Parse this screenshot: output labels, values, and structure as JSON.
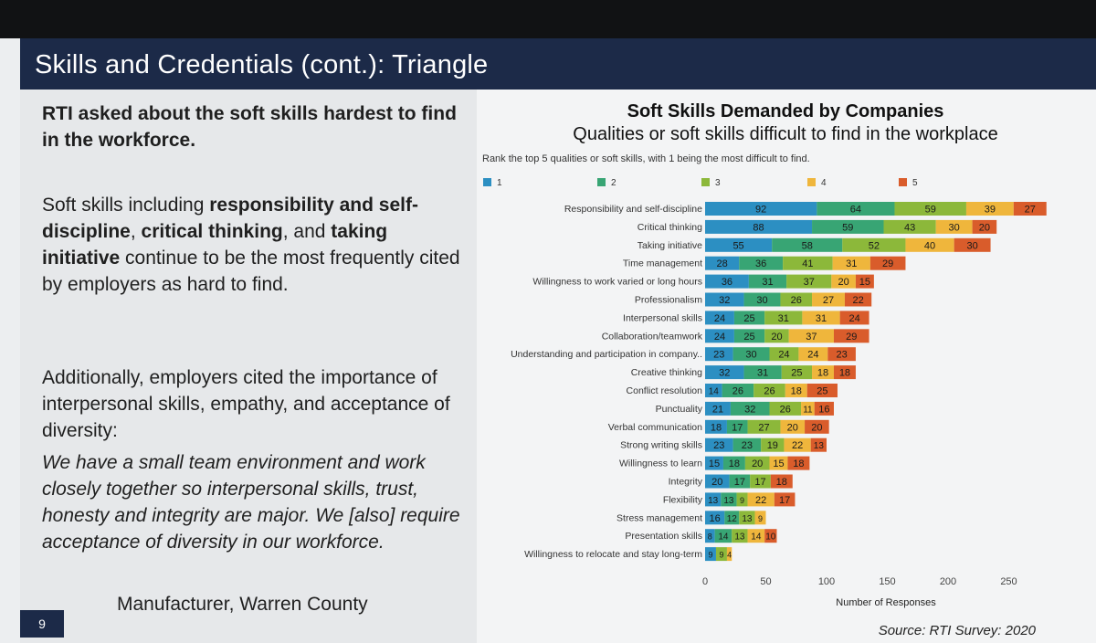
{
  "slide": {
    "title": "Skills and Credentials (cont.): Triangle",
    "intro": "RTI asked about the soft skills hardest to find in the workforce.",
    "para2": {
      "p1": "Soft skills including ",
      "b1": "responsibility and self-discipline",
      "p2": ", ",
      "b2": "critical thinking",
      "p3": ", and ",
      "b3": "taking initiative",
      "p4": " continue to be the most frequently cited by employers as hard to find."
    },
    "para3": "Additionally, employers cited the importance of interpersonal skills, empathy, and acceptance of diversity:",
    "quote": "We have a small team environment and work closely together so interpersonal skills, trust, honesty and integrity are major. We [also] require acceptance of diversity in our workforce.",
    "attribution": "Manufacturer, Warren County",
    "page_number": "9",
    "source": "Source: RTI Survey: 2020"
  },
  "chart_data": {
    "type": "bar",
    "orientation": "horizontal",
    "stacked": true,
    "title": "Soft Skills Demanded by Companies",
    "subtitle": "Qualities or soft skills difficult to find in the workplace",
    "note": "Rank the top 5 qualities or soft skills, with 1 being the most difficult to find.",
    "xlabel": "Number of Responses",
    "xlim": [
      0,
      280
    ],
    "xticks": [
      0,
      50,
      100,
      150,
      200,
      250
    ],
    "legend_position": "top",
    "colors": [
      "#2c8fc2",
      "#38a574",
      "#8cb83a",
      "#efb63c",
      "#d95c2b"
    ],
    "categories": [
      "Responsibility and self-discipline",
      "Critical thinking",
      "Taking initiative",
      "Time management",
      "Willingness to work varied or long hours",
      "Professionalism",
      "Interpersonal skills",
      "Collaboration/teamwork",
      "Understanding and participation in company..",
      "Creative thinking",
      "Conflict resolution",
      "Punctuality",
      "Verbal communication",
      "Strong writing skills",
      "Willingness to learn",
      "Integrity",
      "Flexibility",
      "Stress management",
      "Presentation skills",
      "Willingness to relocate and stay long-term"
    ],
    "series": [
      {
        "name": "1",
        "values": [
          92,
          88,
          55,
          28,
          36,
          32,
          24,
          24,
          23,
          32,
          14,
          21,
          18,
          23,
          15,
          20,
          13,
          16,
          8,
          9
        ]
      },
      {
        "name": "2",
        "values": [
          64,
          59,
          58,
          36,
          31,
          30,
          25,
          25,
          30,
          31,
          26,
          32,
          17,
          23,
          18,
          17,
          13,
          12,
          14,
          0
        ]
      },
      {
        "name": "3",
        "values": [
          59,
          43,
          52,
          41,
          37,
          26,
          31,
          20,
          24,
          25,
          26,
          26,
          27,
          19,
          20,
          17,
          9,
          13,
          13,
          9
        ]
      },
      {
        "name": "4",
        "values": [
          39,
          30,
          40,
          31,
          20,
          27,
          31,
          37,
          24,
          18,
          18,
          11,
          20,
          22,
          15,
          0,
          22,
          9,
          14,
          4
        ]
      },
      {
        "name": "5",
        "values": [
          27,
          20,
          30,
          29,
          15,
          22,
          24,
          29,
          23,
          18,
          25,
          16,
          20,
          13,
          18,
          18,
          17,
          0,
          10,
          0
        ]
      }
    ]
  }
}
